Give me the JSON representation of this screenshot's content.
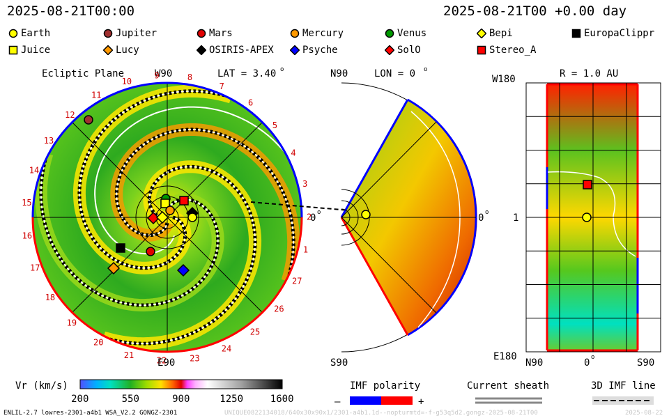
{
  "header": {
    "time_left": "2025-08-21T00:00",
    "time_right": "2025-08-21T00 +0.00 day"
  },
  "legend": {
    "items": [
      {
        "name": "Earth",
        "marker": "circle",
        "color": "#ffff00"
      },
      {
        "name": "Jupiter",
        "marker": "circle",
        "color": "#a03030"
      },
      {
        "name": "Mars",
        "marker": "circle",
        "color": "#e00000"
      },
      {
        "name": "Mercury",
        "marker": "circle",
        "color": "#ff9900"
      },
      {
        "name": "Venus",
        "marker": "circle",
        "color": "#009900"
      },
      {
        "name": "Bepi",
        "marker": "diamond",
        "color": "#ffff00"
      },
      {
        "name": "EuropaClippr",
        "marker": "square",
        "color": "#000000"
      },
      {
        "name": "Juice",
        "marker": "square",
        "color": "#ffff00"
      },
      {
        "name": "Lucy",
        "marker": "diamond",
        "color": "#ff9900"
      },
      {
        "name": "OSIRIS-APEX",
        "marker": "diamond",
        "color": "#000000"
      },
      {
        "name": "Psyche",
        "marker": "diamond",
        "color": "#0000ff"
      },
      {
        "name": "SolO",
        "marker": "diamond",
        "color": "#ff0000"
      },
      {
        "name": "Stereo_A",
        "marker": "square",
        "color": "#ff0000"
      }
    ]
  },
  "ecliptic": {
    "title": "Ecliptic Plane",
    "top_label": "W90",
    "lat_label": "LAT = 3.40",
    "lat_sup": "o",
    "right_label": "0",
    "right_sup": "o",
    "bottom_label": "E90",
    "sector_numbers": [
      "1",
      "2",
      "3",
      "4",
      "5",
      "6",
      "7",
      "8",
      "9",
      "10",
      "11",
      "12",
      "13",
      "14",
      "15",
      "16",
      "17",
      "18",
      "19",
      "20",
      "21",
      "22",
      "23",
      "24",
      "25",
      "26",
      "27"
    ]
  },
  "meridional": {
    "top_label": "N90",
    "lon_label": "LON = 0",
    "lon_sup": "o",
    "right_label": "0",
    "right_sup": "o",
    "bottom_label": "S90"
  },
  "radial": {
    "title": "R = 1.0 AU",
    "top_left": "W180",
    "mid_left": "1",
    "bottom_left": "E180",
    "x_left": "N90",
    "x_mid": "0",
    "x_mid_sup": "o",
    "x_right": "S90"
  },
  "colorbar": {
    "label": "Vr (km/s)",
    "ticks": [
      "200",
      "550",
      "900",
      "1250",
      "1600"
    ],
    "range": [
      200,
      1600
    ]
  },
  "imf": {
    "label": "IMF polarity",
    "minus": "–",
    "plus": "+",
    "negative_color": "#0000ff",
    "positive_color": "#ff0000"
  },
  "sheath": {
    "label": "Current sheath"
  },
  "imf3d": {
    "label": "3D IMF line"
  },
  "footer": {
    "model": "ENLIL-2.7 lowres-2301-a4b1 WSA_V2.2 GONGZ-2301",
    "run_id": "UNIQUE0822134018/640x30x90x1/2301-a4b1.1d--nopturmtd=-f-g53q5d2.gongz-2025-08-21T00",
    "date_tail": "2025-08-22"
  },
  "chart_data": {
    "type": "heatmap",
    "title": "Ecliptic Plane / Meridional / R = 1.0 AU solar wind radial velocity",
    "quantity": "Vr",
    "units": "km/s",
    "range": [
      200,
      1600
    ],
    "positions_ecliptic": [
      {
        "name": "Earth",
        "lon_deg": 0,
        "r_au": 1.0
      },
      {
        "name": "Jupiter"
      },
      {
        "name": "Mars"
      },
      {
        "name": "Mercury"
      },
      {
        "name": "Venus"
      },
      {
        "name": "Bepi"
      },
      {
        "name": "EuropaClippr"
      },
      {
        "name": "Juice"
      },
      {
        "name": "Lucy"
      },
      {
        "name": "OSIRIS-APEX"
      },
      {
        "name": "Psyche"
      },
      {
        "name": "SolO"
      },
      {
        "name": "Stereo_A"
      }
    ]
  }
}
